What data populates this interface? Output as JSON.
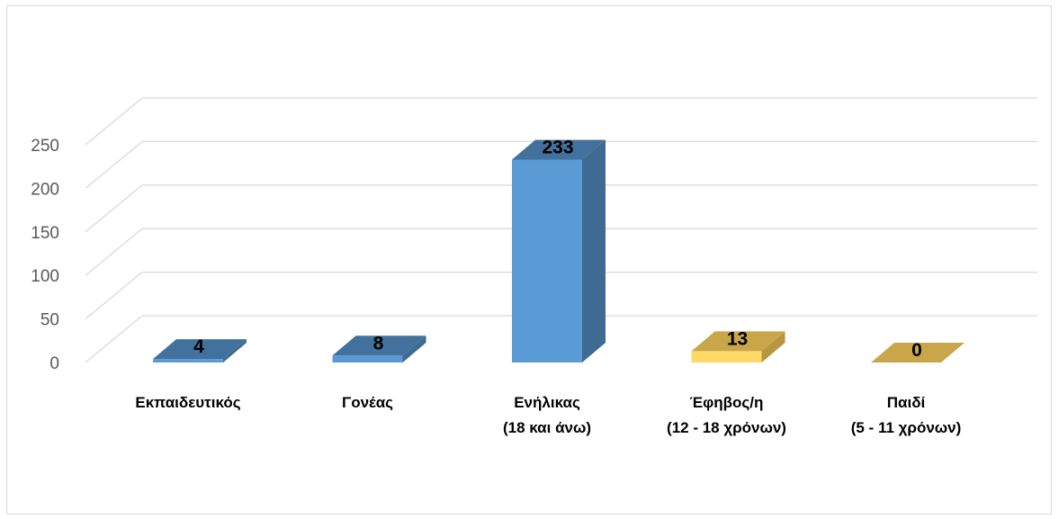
{
  "chart_data": {
    "type": "bar",
    "title": "",
    "xlabel": "",
    "ylabel": "",
    "ylim": [
      0,
      250
    ],
    "y_ticks": [
      "0",
      "50",
      "100",
      "150",
      "200",
      "250"
    ],
    "grid": true,
    "categories": [
      [
        "Εκπαιδευτικός"
      ],
      [
        "Γονέας"
      ],
      [
        "Ενήλικας",
        "(18 και άνω)"
      ],
      [
        "Έφηβος/η",
        "(12 - 18 χρόνων)"
      ],
      [
        "Παιδί",
        "(5 - 11 χρόνων)"
      ]
    ],
    "values": [
      4,
      8,
      233,
      13,
      0
    ],
    "data_labels": [
      "4",
      "8",
      "233",
      "13",
      "0"
    ],
    "bar_colors": [
      {
        "front": "#5b9bd5",
        "side": "#3f6a92",
        "top": "#41719c"
      },
      {
        "front": "#5b9bd5",
        "side": "#3f6a92",
        "top": "#41719c"
      },
      {
        "front": "#5b9bd5",
        "side": "#3f6a92",
        "top": "#41719c"
      },
      {
        "front": "#ffd966",
        "side": "#b8963f",
        "top": "#c9a649"
      },
      {
        "front": "#ffd966",
        "side": "#b8963f",
        "top": "#c9a649"
      }
    ],
    "style": "3d-column"
  }
}
